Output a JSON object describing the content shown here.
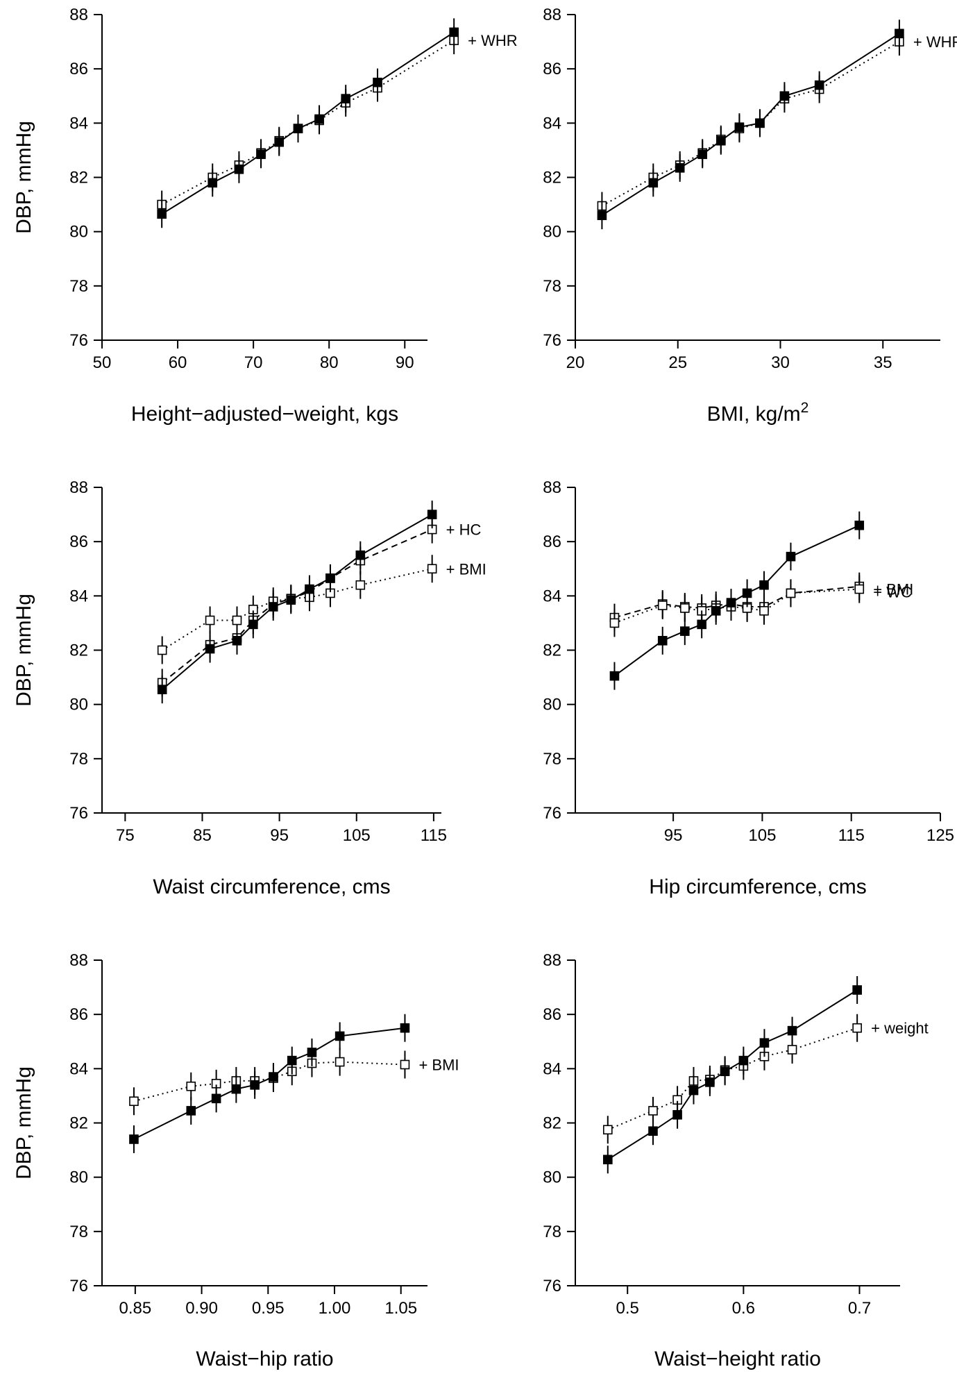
{
  "chart_data": [
    {
      "type": "line",
      "xlabel": "Height−adjusted−weight, kgs",
      "ylabel": "DBP, mmHg",
      "xlim": [
        50,
        93
      ],
      "ylim": [
        76,
        88
      ],
      "xticks": [
        "50",
        "60",
        "70",
        "80",
        "90"
      ],
      "yticks": [
        "76",
        "78",
        "80",
        "82",
        "84",
        "86",
        "88"
      ],
      "series": [
        {
          "style": "solid-filled",
          "x": [
            57.9,
            64.6,
            68.1,
            71.0,
            73.4,
            75.9,
            78.7,
            82.2,
            86.4,
            96.5
          ],
          "y": [
            80.65,
            81.8,
            82.3,
            82.85,
            83.3,
            83.8,
            84.15,
            84.9,
            85.5,
            87.35
          ]
        },
        {
          "name": "+ WHR",
          "style": "dotted-open",
          "x": [
            57.9,
            64.6,
            68.1,
            71.0,
            73.4,
            75.9,
            78.7,
            82.2,
            86.4,
            96.5
          ],
          "y": [
            81.0,
            82.0,
            82.45,
            82.9,
            83.35,
            83.8,
            84.1,
            84.75,
            85.3,
            87.05
          ]
        }
      ]
    },
    {
      "type": "line",
      "xlabel": "BMI, kg/m",
      "xlabel_sup": "2",
      "ylabel": "",
      "xlim": [
        20,
        37.8
      ],
      "ylim": [
        76,
        88
      ],
      "xticks": [
        "20",
        "25",
        "30",
        "35",
        "40"
      ],
      "yticks": [
        "76",
        "78",
        "80",
        "82",
        "84",
        "86",
        "88"
      ],
      "series": [
        {
          "style": "solid-filled",
          "x": [
            21.3,
            23.8,
            25.1,
            26.2,
            27.1,
            28.0,
            29.0,
            30.2,
            31.9,
            35.8
          ],
          "y": [
            80.6,
            81.8,
            82.35,
            82.85,
            83.35,
            83.85,
            84.0,
            85.0,
            85.4,
            87.3
          ]
        },
        {
          "name": "+ WHR",
          "style": "dotted-open",
          "x": [
            21.3,
            23.8,
            25.1,
            26.2,
            27.1,
            28.0,
            29.0,
            30.2,
            31.9,
            35.8
          ],
          "y": [
            80.95,
            82.0,
            82.45,
            82.9,
            83.4,
            83.8,
            84.0,
            84.9,
            85.25,
            87.0
          ]
        }
      ]
    },
    {
      "type": "line",
      "xlabel": "Waist circumference, cms",
      "ylabel": "DBP, mmHg",
      "xlim": [
        72,
        116
      ],
      "ylim": [
        76,
        88
      ],
      "xticks": [
        "75",
        "85",
        "95",
        "105",
        "115"
      ],
      "yticks": [
        "76",
        "78",
        "80",
        "82",
        "84",
        "86",
        "88"
      ],
      "series": [
        {
          "style": "solid-filled",
          "x": [
            79.8,
            86.0,
            89.5,
            91.6,
            94.2,
            96.5,
            98.9,
            101.6,
            105.5,
            114.8
          ],
          "y": [
            80.55,
            82.05,
            82.35,
            82.95,
            83.6,
            83.85,
            84.25,
            84.65,
            85.5,
            87.0
          ]
        },
        {
          "name": "+ HC",
          "style": "dashed-open",
          "x": [
            79.8,
            86.0,
            89.5,
            91.6,
            94.2,
            96.5,
            98.9,
            101.6,
            105.5,
            114.8
          ],
          "y": [
            80.8,
            82.2,
            82.45,
            83.1,
            83.7,
            83.9,
            84.15,
            84.65,
            85.3,
            86.45
          ]
        },
        {
          "name": "+ BMI",
          "style": "dotted-open",
          "x": [
            79.8,
            86.0,
            89.5,
            91.6,
            94.2,
            96.5,
            98.9,
            101.6,
            105.5,
            114.8
          ],
          "y": [
            82.0,
            83.1,
            83.1,
            83.5,
            83.8,
            83.9,
            83.95,
            84.1,
            84.4,
            85.0
          ]
        }
      ]
    },
    {
      "type": "line",
      "xlabel": "Hip circumference, cms",
      "ylabel": "",
      "xlim": [
        84,
        125
      ],
      "ylim": [
        76,
        88
      ],
      "xticks": [
        "95",
        "105",
        "115",
        "125"
      ],
      "yticks": [
        "76",
        "78",
        "80",
        "82",
        "84",
        "86",
        "88"
      ],
      "series": [
        {
          "style": "solid-filled",
          "x": [
            88.4,
            93.8,
            96.3,
            98.2,
            99.8,
            101.5,
            103.3,
            105.2,
            108.2,
            115.9
          ],
          "y": [
            81.05,
            82.35,
            82.7,
            82.95,
            83.45,
            83.75,
            84.1,
            84.4,
            85.45,
            86.6
          ]
        },
        {
          "name": "+ WC",
          "style": "dashed-open",
          "x": [
            88.4,
            93.8,
            96.3,
            98.2,
            99.8,
            101.5,
            103.3,
            105.2,
            108.2,
            115.9
          ],
          "y": [
            83.2,
            83.7,
            83.6,
            83.55,
            83.65,
            83.7,
            83.6,
            83.6,
            84.1,
            84.35
          ]
        },
        {
          "name": "+ BMI",
          "style": "dotted-open",
          "x": [
            88.4,
            93.8,
            96.3,
            98.2,
            99.8,
            101.5,
            103.3,
            105.2,
            108.2,
            115.9
          ],
          "y": [
            83.0,
            83.65,
            83.55,
            83.45,
            83.55,
            83.6,
            83.55,
            83.45,
            84.1,
            84.25
          ]
        }
      ]
    },
    {
      "type": "line",
      "xlabel": "Waist−hip ratio",
      "ylabel": "DBP, mmHg",
      "xlim": [
        0.825,
        1.07
      ],
      "ylim": [
        76,
        88
      ],
      "xticks": [
        "0.85",
        "0.90",
        "0.95",
        "1.00",
        "1.05"
      ],
      "yticks": [
        "76",
        "78",
        "80",
        "82",
        "84",
        "86",
        "88"
      ],
      "series": [
        {
          "style": "solid-filled",
          "x": [
            0.849,
            0.892,
            0.911,
            0.926,
            0.94,
            0.954,
            0.968,
            0.983,
            1.004,
            1.053
          ],
          "y": [
            81.4,
            82.45,
            82.9,
            83.25,
            83.4,
            83.7,
            84.3,
            84.6,
            85.2,
            85.5
          ]
        },
        {
          "name": "+ BMI",
          "style": "dotted-open",
          "x": [
            0.849,
            0.892,
            0.911,
            0.926,
            0.94,
            0.954,
            0.968,
            0.983,
            1.004,
            1.053
          ],
          "y": [
            82.8,
            83.35,
            83.45,
            83.55,
            83.55,
            83.65,
            83.9,
            84.2,
            84.25,
            84.15
          ]
        }
      ]
    },
    {
      "type": "line",
      "xlabel": "Waist−height ratio",
      "ylabel": "",
      "xlim": [
        0.455,
        0.735
      ],
      "ylim": [
        76,
        88
      ],
      "xticks": [
        "0.5",
        "0.6",
        "0.7"
      ],
      "yticks": [
        "76",
        "78",
        "80",
        "82",
        "84",
        "86",
        "88"
      ],
      "series": [
        {
          "style": "solid-filled",
          "x": [
            0.483,
            0.522,
            0.543,
            0.557,
            0.571,
            0.584,
            0.6,
            0.618,
            0.642,
            0.698
          ],
          "y": [
            80.65,
            81.7,
            82.3,
            83.2,
            83.5,
            83.9,
            84.3,
            84.95,
            85.4,
            86.9
          ]
        },
        {
          "name": "+ weight",
          "style": "dotted-open",
          "x": [
            0.483,
            0.522,
            0.543,
            0.557,
            0.571,
            0.584,
            0.6,
            0.618,
            0.642,
            0.698
          ],
          "y": [
            81.75,
            82.45,
            82.85,
            83.55,
            83.6,
            83.95,
            84.1,
            84.45,
            84.7,
            85.5
          ]
        }
      ]
    }
  ]
}
